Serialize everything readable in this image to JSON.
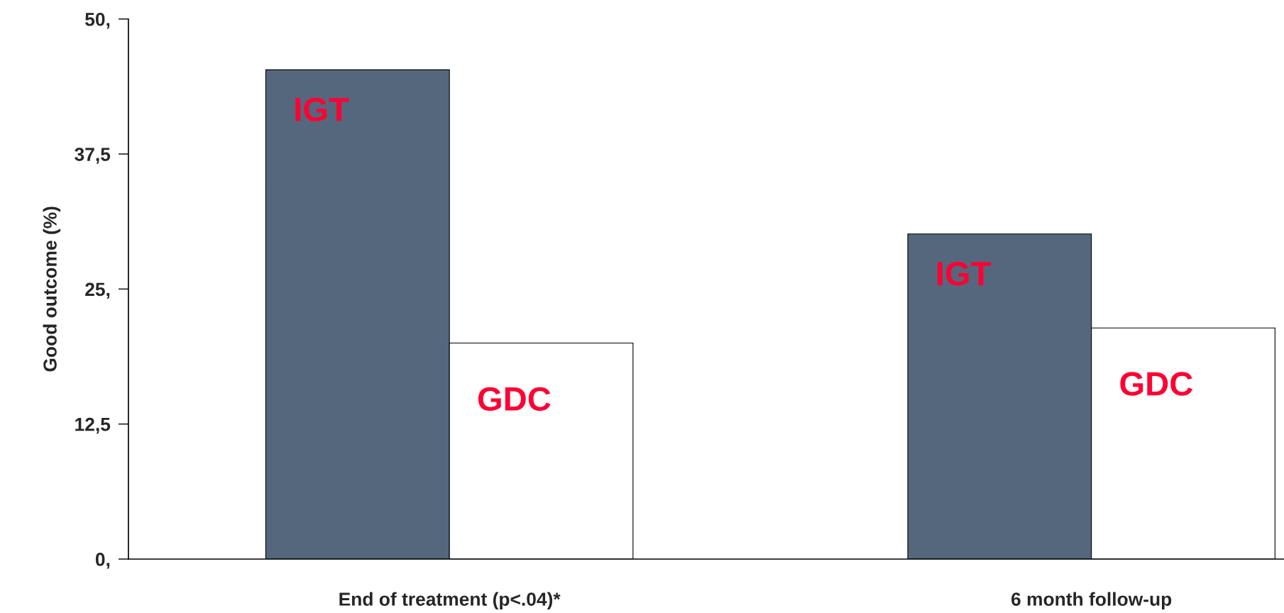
{
  "chart_data": {
    "type": "bar",
    "ylabel": "Good outcome (%)",
    "categories": [
      "End of treatment (p<.04)*",
      "6 month follow-up"
    ],
    "series": [
      {
        "name": "IGT",
        "color": "#55677d",
        "values": [
          45.3,
          30.1
        ]
      },
      {
        "name": "GDC",
        "color": "#ffffff",
        "values": [
          20.0,
          21.4
        ]
      }
    ],
    "ylim": [
      0,
      50
    ],
    "yticks": [
      {
        "value": 0,
        "label": "0,"
      },
      {
        "value": 12.5,
        "label": "12,5"
      },
      {
        "value": 25,
        "label": "25,"
      },
      {
        "value": 37.5,
        "label": "37,5"
      },
      {
        "value": 50,
        "label": "50,"
      }
    ],
    "grid": false,
    "legend": false
  }
}
